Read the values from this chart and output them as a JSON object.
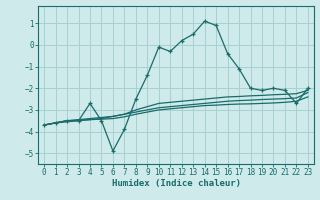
{
  "xlabel": "Humidex (Indice chaleur)",
  "ylabel": "",
  "xlim": [
    -0.5,
    23.5
  ],
  "ylim": [
    -5.5,
    1.8
  ],
  "yticks": [
    1,
    0,
    -1,
    -2,
    -3,
    -4,
    -5
  ],
  "xticks": [
    0,
    1,
    2,
    3,
    4,
    5,
    6,
    7,
    8,
    9,
    10,
    11,
    12,
    13,
    14,
    15,
    16,
    17,
    18,
    19,
    20,
    21,
    22,
    23
  ],
  "background_color": "#ceeaea",
  "grid_color": "#a8d0d0",
  "line_color": "#1a6b6b",
  "line1_x": [
    0,
    1,
    2,
    3,
    4,
    5,
    6,
    7,
    8,
    9,
    10,
    11,
    12,
    13,
    14,
    15,
    16,
    17,
    18,
    19,
    20,
    21,
    22,
    23
  ],
  "line1_y": [
    -3.7,
    -3.6,
    -3.5,
    -3.5,
    -2.7,
    -3.5,
    -4.9,
    -3.9,
    -2.5,
    -1.4,
    -0.1,
    -0.3,
    0.2,
    0.5,
    1.1,
    0.9,
    -0.4,
    -1.1,
    -2.0,
    -2.1,
    -2.0,
    -2.1,
    -2.7,
    -2.0
  ],
  "line2_x": [
    0,
    1,
    2,
    3,
    4,
    5,
    6,
    7,
    8,
    9,
    10,
    11,
    12,
    13,
    14,
    15,
    16,
    17,
    18,
    19,
    20,
    21,
    22,
    23
  ],
  "line2_y": [
    -3.7,
    -3.6,
    -3.55,
    -3.5,
    -3.45,
    -3.4,
    -3.3,
    -3.2,
    -3.0,
    -2.85,
    -2.7,
    -2.65,
    -2.6,
    -2.55,
    -2.5,
    -2.45,
    -2.4,
    -2.38,
    -2.35,
    -2.33,
    -2.3,
    -2.28,
    -2.25,
    -2.1
  ],
  "line3_x": [
    0,
    1,
    2,
    3,
    4,
    5,
    6,
    7,
    8,
    9,
    10,
    11,
    12,
    13,
    14,
    15,
    16,
    17,
    18,
    19,
    20,
    21,
    22,
    23
  ],
  "line3_y": [
    -3.7,
    -3.6,
    -3.5,
    -3.45,
    -3.4,
    -3.35,
    -3.3,
    -3.2,
    -3.1,
    -3.0,
    -2.9,
    -2.85,
    -2.8,
    -2.75,
    -2.7,
    -2.65,
    -2.6,
    -2.57,
    -2.55,
    -2.52,
    -2.5,
    -2.48,
    -2.45,
    -2.2
  ],
  "line4_x": [
    0,
    1,
    2,
    3,
    4,
    5,
    6,
    7,
    8,
    9,
    10,
    11,
    12,
    13,
    14,
    15,
    16,
    17,
    18,
    19,
    20,
    21,
    22,
    23
  ],
  "line4_y": [
    -3.7,
    -3.6,
    -3.5,
    -3.48,
    -3.45,
    -3.43,
    -3.4,
    -3.32,
    -3.2,
    -3.1,
    -3.0,
    -2.95,
    -2.9,
    -2.85,
    -2.8,
    -2.78,
    -2.75,
    -2.73,
    -2.72,
    -2.7,
    -2.68,
    -2.65,
    -2.6,
    -2.4
  ]
}
